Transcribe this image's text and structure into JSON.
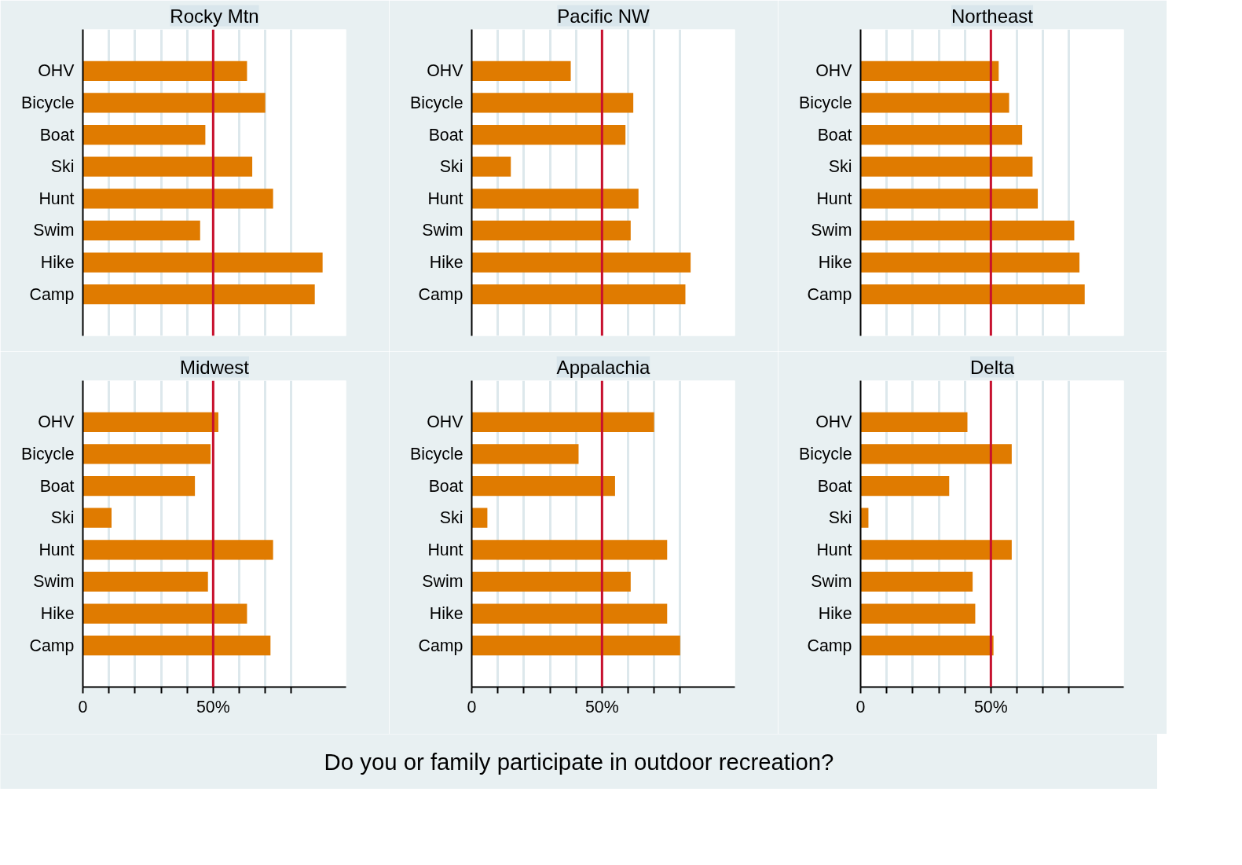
{
  "chart_data": [
    {
      "type": "bar",
      "orientation": "horizontal",
      "title": "Rocky Mtn",
      "categories": [
        "OHV",
        "Bicycle",
        "Boat",
        "Ski",
        "Hunt",
        "Swim",
        "Hike",
        "Camp"
      ],
      "values": [
        63,
        70,
        47,
        65,
        73,
        45,
        92,
        89
      ],
      "color": "#e07b00",
      "xlim": [
        0,
        101
      ],
      "xticks": [
        10,
        20,
        30,
        40,
        50,
        60,
        70,
        80
      ],
      "ref_lines": [
        {
          "axis": "x",
          "value": 50,
          "color": "#c8102e"
        }
      ],
      "grid": "x",
      "tick_labels": "y"
    },
    {
      "type": "bar",
      "orientation": "horizontal",
      "title": "Pacific NW",
      "categories": [
        "OHV",
        "Bicycle",
        "Boat",
        "Ski",
        "Hunt",
        "Swim",
        "Hike",
        "Camp"
      ],
      "values": [
        38,
        62,
        59,
        15,
        64,
        61,
        84,
        82
      ],
      "color": "#e07b00",
      "xlim": [
        0,
        101
      ],
      "xticks": [
        10,
        20,
        30,
        40,
        50,
        60,
        70,
        80
      ],
      "ref_lines": [
        {
          "axis": "x",
          "value": 50,
          "color": "#c8102e"
        }
      ],
      "grid": "x",
      "tick_labels": "y"
    },
    {
      "type": "bar",
      "orientation": "horizontal",
      "title": "Northeast",
      "categories": [
        "OHV",
        "Bicycle",
        "Boat",
        "Ski",
        "Hunt",
        "Swim",
        "Hike",
        "Camp"
      ],
      "values": [
        53,
        57,
        62,
        66,
        68,
        82,
        84,
        86
      ],
      "color": "#e07b00",
      "xlim": [
        0,
        101
      ],
      "xticks": [
        10,
        20,
        30,
        40,
        50,
        60,
        70,
        80
      ],
      "ref_lines": [
        {
          "axis": "x",
          "value": 50,
          "color": "#c8102e"
        }
      ],
      "grid": "x",
      "tick_labels": "y"
    },
    {
      "type": "bar",
      "orientation": "horizontal",
      "title": "Midwest",
      "categories": [
        "OHV",
        "Bicycle",
        "Boat",
        "Ski",
        "Hunt",
        "Swim",
        "Hike",
        "Camp"
      ],
      "values": [
        52,
        49,
        43,
        11,
        73,
        48,
        63,
        72
      ],
      "color": "#e07b00",
      "xlim": [
        0,
        101
      ],
      "xticks": [
        0,
        {
          "value": 10,
          "label": null
        },
        {
          "value": 20,
          "label": null
        },
        {
          "value": 30,
          "label": null
        },
        {
          "value": 40,
          "label": null
        },
        {
          "value": 50,
          "label": "50%"
        },
        {
          "value": 60,
          "label": null
        },
        {
          "value": 70,
          "label": null
        },
        {
          "value": 80,
          "label": null
        }
      ],
      "ref_lines": [
        {
          "axis": "x",
          "value": 50,
          "color": "#c8102e"
        }
      ],
      "grid": "x"
    },
    {
      "type": "bar",
      "orientation": "horizontal",
      "title": "Appalachia",
      "xlabel": "Do you or family participate in outdoor recreation?",
      "categories": [
        "OHV",
        "Bicycle",
        "Boat",
        "Ski",
        "Hunt",
        "Swim",
        "Hike",
        "Camp"
      ],
      "values": [
        70,
        41,
        55,
        6,
        75,
        61,
        75,
        80
      ],
      "color": "#e07b00",
      "xlim": [
        0,
        101
      ],
      "xticks": [
        0,
        {
          "value": 10,
          "label": null
        },
        {
          "value": 20,
          "label": null
        },
        {
          "value": 30,
          "label": null
        },
        {
          "value": 40,
          "label": null
        },
        {
          "value": 50,
          "label": "50%"
        },
        {
          "value": 60,
          "label": null
        },
        {
          "value": 70,
          "label": null
        },
        {
          "value": 80,
          "label": null
        }
      ],
      "ref_lines": [
        {
          "axis": "x",
          "value": 50,
          "color": "#c8102e"
        }
      ],
      "grid": "x"
    },
    {
      "type": "bar",
      "orientation": "horizontal",
      "title": "Delta",
      "categories": [
        "OHV",
        "Bicycle",
        "Boat",
        "Ski",
        "Hunt",
        "Swim",
        "Hike",
        "Camp"
      ],
      "values": [
        41,
        58,
        34,
        3,
        58,
        43,
        44,
        51
      ],
      "color": "#e07b00",
      "xlim": [
        0,
        101
      ],
      "xticks": [
        0,
        {
          "value": 10,
          "label": null
        },
        {
          "value": 20,
          "label": null
        },
        {
          "value": 30,
          "label": null
        },
        {
          "value": 40,
          "label": null
        },
        {
          "value": 50,
          "label": "50%"
        },
        {
          "value": 60,
          "label": null
        },
        {
          "value": 70,
          "label": null
        },
        {
          "value": 80,
          "label": null
        }
      ],
      "ref_lines": [
        {
          "axis": "x",
          "value": 50,
          "color": "#c8102e"
        }
      ],
      "grid": "x"
    }
  ]
}
